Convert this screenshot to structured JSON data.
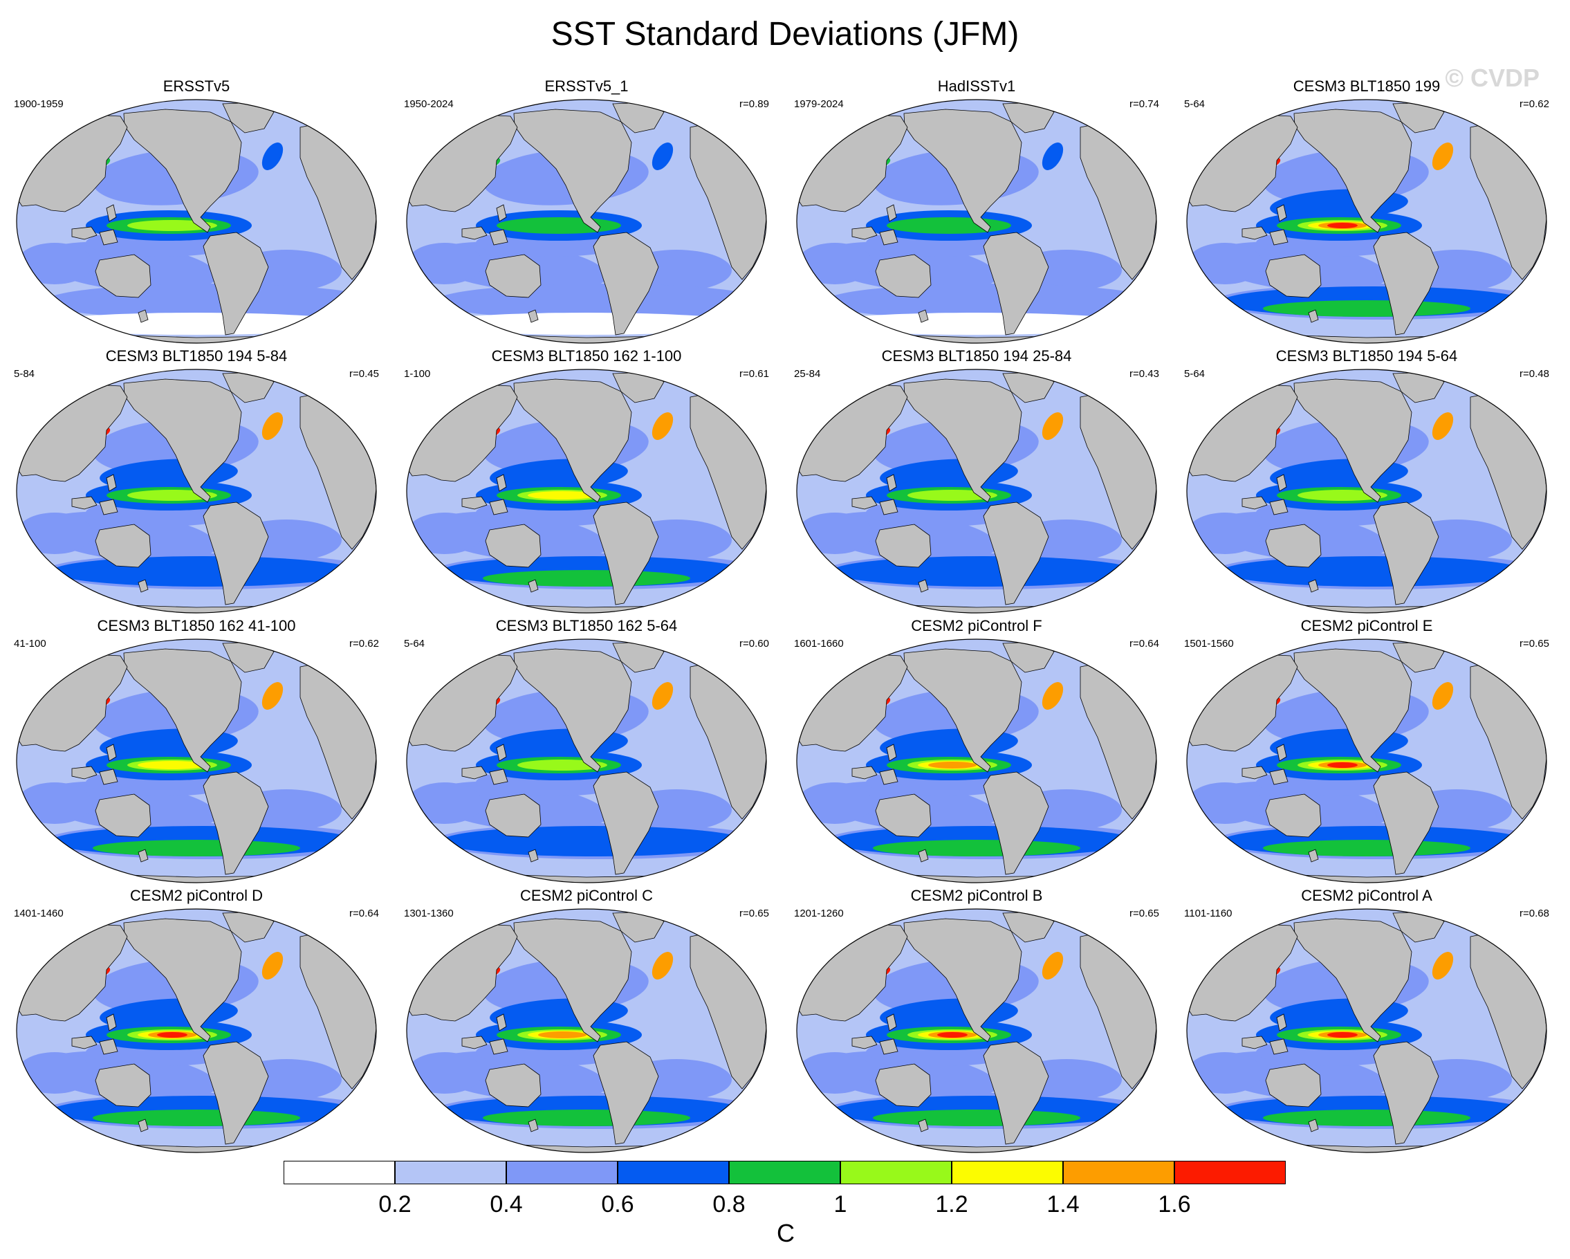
{
  "title": "SST Standard Deviations (JFM)",
  "watermark": "© CVDP",
  "panels": [
    {
      "title": "ERSSTv5",
      "years": "1900-1959",
      "corr": "",
      "amp": 0.95
    },
    {
      "title": "ERSSTv5_1",
      "years": "1950-2024",
      "corr": "r=0.89",
      "amp": 0.9
    },
    {
      "title": "HadISSTv1",
      "years": "1979-2024",
      "corr": "r=0.74",
      "amp": 0.9
    },
    {
      "title": "CESM3 BLT1850 199",
      "years": "5-64",
      "corr": "r=0.62",
      "amp": 1.6
    },
    {
      "title": "CESM3 BLT1850 194 5-84",
      "years": "5-84",
      "corr": "r=0.45",
      "amp": 1.05
    },
    {
      "title": "CESM3 BLT1850 162 1-100",
      "years": "1-100",
      "corr": "r=0.61",
      "amp": 1.25
    },
    {
      "title": "CESM3 BLT1850 194 25-84",
      "years": "25-84",
      "corr": "r=0.43",
      "amp": 1.05
    },
    {
      "title": "CESM3 BLT1850 194 5-64",
      "years": "5-64",
      "corr": "r=0.48",
      "amp": 1.0
    },
    {
      "title": "CESM3 BLT1850 162 41-100",
      "years": "41-100",
      "corr": "r=0.62",
      "amp": 1.3
    },
    {
      "title": "CESM3 BLT1850 162 5-64",
      "years": "5-64",
      "corr": "r=0.60",
      "amp": 1.1
    },
    {
      "title": "CESM2 piControl F",
      "years": "1601-1660",
      "corr": "r=0.64",
      "amp": 1.5
    },
    {
      "title": "CESM2 piControl E",
      "years": "1501-1560",
      "corr": "r=0.65",
      "amp": 1.7
    },
    {
      "title": "CESM2 piControl D",
      "years": "1401-1460",
      "corr": "r=0.64",
      "amp": 1.7
    },
    {
      "title": "CESM2 piControl C",
      "years": "1301-1360",
      "corr": "r=0.65",
      "amp": 1.5
    },
    {
      "title": "CESM2 piControl B",
      "years": "1201-1260",
      "corr": "r=0.65",
      "amp": 1.6
    },
    {
      "title": "CESM2 piControl A",
      "years": "1101-1160",
      "corr": "r=0.68",
      "amp": 1.7
    }
  ],
  "colorbar": {
    "unit": "C",
    "ticks": [
      "0.2",
      "0.4",
      "0.6",
      "0.8",
      "1",
      "1.2",
      "1.4",
      "1.6"
    ],
    "colors": [
      "#ffffff",
      "#b4c5f6",
      "#7f98f7",
      "#045bf1",
      "#13c13b",
      "#98f91a",
      "#fcfc00",
      "#fd9d00",
      "#fc1b00"
    ]
  },
  "land_color": "#c0c0c0"
}
